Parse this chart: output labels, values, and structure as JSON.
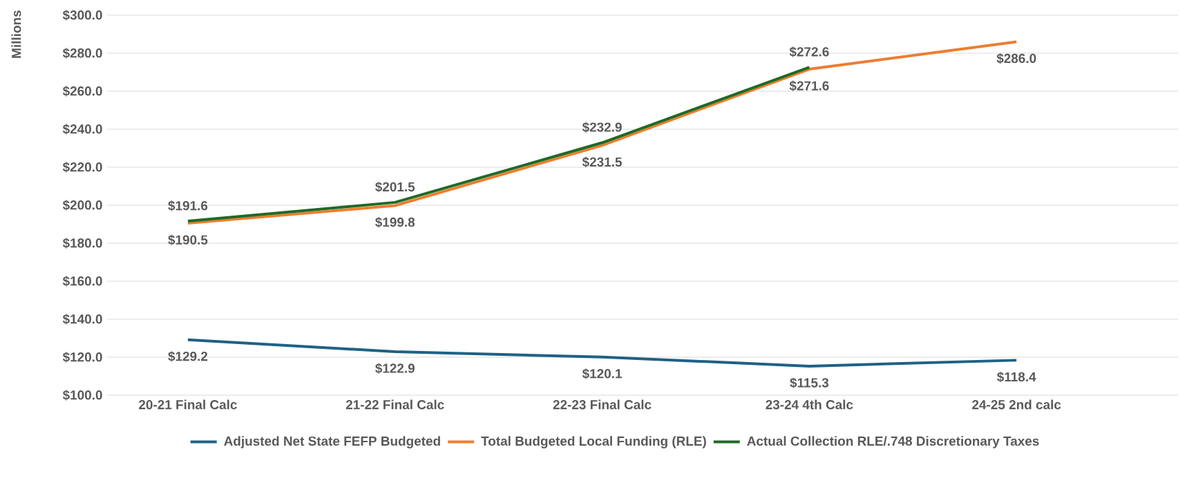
{
  "chart_data": {
    "type": "line",
    "ylabel": "Millions",
    "categories": [
      "20-21 Final Calc",
      "21-22 Final Calc",
      "22-23 Final Calc",
      "23-24 4th Calc",
      "24-25 2nd calc"
    ],
    "series": [
      {
        "name": "Adjusted Net State FEFP Budgeted",
        "color": "#1f6185",
        "values": [
          129.2,
          122.9,
          120.1,
          115.3,
          118.4
        ],
        "value_labels": [
          "$129.2",
          "$122.9",
          "$120.1",
          "$115.3",
          "$118.4"
        ]
      },
      {
        "name": "Total Budgeted Local Funding (RLE)",
        "color": "#ed7d31",
        "values": [
          190.5,
          199.8,
          231.5,
          271.6,
          286.0
        ],
        "value_labels": [
          "$190.5",
          "$199.8",
          "$231.5",
          "$271.6",
          "$286.0"
        ]
      },
      {
        "name": "Actual Collection RLE/.748 Discretionary Taxes",
        "color": "#1e6b24",
        "values": [
          191.6,
          201.5,
          232.9,
          272.6,
          null
        ],
        "value_labels": [
          "$191.6",
          "$201.5",
          "$232.9",
          "$272.6",
          null
        ]
      }
    ],
    "ylim": [
      100,
      300
    ],
    "yticks": [
      {
        "value": 100,
        "label": "$100.0"
      },
      {
        "value": 120,
        "label": "$120.0"
      },
      {
        "value": 140,
        "label": "$140.0"
      },
      {
        "value": 160,
        "label": "$160.0"
      },
      {
        "value": 180,
        "label": "$180.0"
      },
      {
        "value": 200,
        "label": "$200.0"
      },
      {
        "value": 220,
        "label": "$220.0"
      },
      {
        "value": 240,
        "label": "$240.0"
      },
      {
        "value": 260,
        "label": "$260.0"
      },
      {
        "value": 280,
        "label": "$280.0"
      },
      {
        "value": 300,
        "label": "$300.0"
      }
    ],
    "grid": "y",
    "legend": "bottom",
    "marker": "none",
    "line_style": "solid"
  }
}
